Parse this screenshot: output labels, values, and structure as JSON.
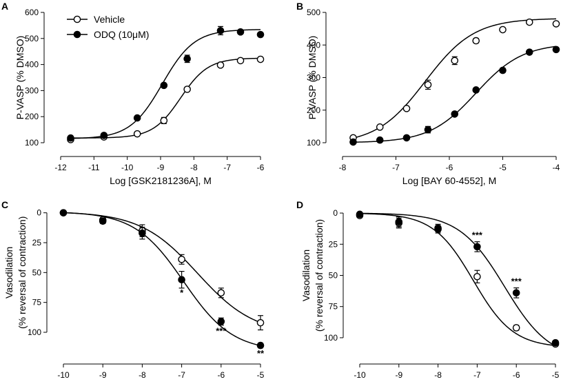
{
  "colors": {
    "ink": "#000000",
    "open_fill": "#ffffff",
    "filled": "#000000"
  },
  "legend": [
    {
      "label": "Vehicle",
      "marker": "open-circle"
    },
    {
      "label": "ODQ (10μM)",
      "marker": "filled-circle"
    }
  ],
  "chart_data": [
    {
      "type": "scatter",
      "panel": "A",
      "xlabel": "Log [GSK2181236A], M",
      "ylabel": "P-VASP (% DMSO)",
      "xlim": [
        -12,
        -6
      ],
      "ylim": [
        100,
        600
      ],
      "xticks": [
        -12,
        -11,
        -10,
        -9,
        -8,
        -7,
        -6
      ],
      "yticks": [
        100,
        200,
        300,
        400,
        500,
        600
      ],
      "inverted_y": false,
      "series": [
        {
          "name": "Vehicle",
          "marker": "open",
          "x": [
            -11.7,
            -10.7,
            -9.7,
            -8.9,
            -8.2,
            -7.2,
            -6.6,
            -6.0
          ],
          "y": [
            112,
            122,
            134,
            185,
            305,
            398,
            415,
            420
          ],
          "err": [
            6,
            5,
            6,
            12,
            8,
            8,
            6,
            5
          ],
          "fit": {
            "bottom": 118,
            "top": 425,
            "ec50": -8.4,
            "hill": 1.05
          }
        },
        {
          "name": "ODQ (10μM)",
          "marker": "filled",
          "x": [
            -11.7,
            -10.7,
            -9.7,
            -8.9,
            -8.2,
            -7.2,
            -6.6,
            -6.0
          ],
          "y": [
            118,
            128,
            195,
            320,
            422,
            530,
            525,
            515
          ],
          "err": [
            5,
            5,
            6,
            7,
            14,
            16,
            8,
            6
          ],
          "fit": {
            "bottom": 115,
            "top": 535,
            "ec50": -8.95,
            "hill": 0.9
          }
        }
      ],
      "annotations": []
    },
    {
      "type": "scatter",
      "panel": "B",
      "xlabel": "Log [BAY 60-4552], M",
      "ylabel": "P-VASP (% DMSO)",
      "xlim": [
        -8,
        -4
      ],
      "ylim": [
        100,
        500
      ],
      "xticks": [
        -8,
        -7,
        -6,
        -5,
        -4
      ],
      "yticks": [
        100,
        200,
        300,
        400,
        500
      ],
      "inverted_y": false,
      "series": [
        {
          "name": "Vehicle",
          "marker": "open",
          "x": [
            -7.8,
            -7.3,
            -6.8,
            -6.4,
            -5.9,
            -5.5,
            -5.0,
            -4.5,
            -4.0
          ],
          "y": [
            115,
            148,
            205,
            278,
            352,
            413,
            447,
            470,
            465
          ],
          "err": [
            5,
            5,
            6,
            14,
            12,
            7,
            6,
            5,
            5
          ],
          "fit": {
            "bottom": 95,
            "top": 482,
            "ec50": -6.45,
            "hill": 0.95
          }
        },
        {
          "name": "ODQ (10μM)",
          "marker": "filled",
          "x": [
            -7.8,
            -7.3,
            -6.8,
            -6.4,
            -5.9,
            -5.5,
            -5.0,
            -4.5,
            -4.0
          ],
          "y": [
            102,
            108,
            115,
            140,
            188,
            262,
            322,
            378,
            386
          ],
          "err": [
            4,
            4,
            4,
            10,
            5,
            6,
            7,
            5,
            5
          ],
          "fit": {
            "bottom": 100,
            "top": 405,
            "ec50": -5.5,
            "hill": 1.0
          }
        }
      ],
      "annotations": []
    },
    {
      "type": "scatter",
      "panel": "C",
      "xlabel": "Log [GSK2181236A], M",
      "ylabel": "Vasodilation",
      "ylabel2": "(% reversal of contraction)",
      "xlim": [
        -10,
        -5
      ],
      "ylim": [
        -5,
        115
      ],
      "xticks": [
        -10,
        -9,
        -8,
        -7,
        -6,
        -5
      ],
      "yticks": [
        0,
        25,
        50,
        75,
        100
      ],
      "inverted_y": true,
      "series": [
        {
          "name": "Vehicle",
          "marker": "open",
          "x": [
            -10,
            -9,
            -8,
            -7,
            -6,
            -5
          ],
          "y": [
            0,
            6,
            15,
            39,
            67,
            92
          ],
          "err": [
            1,
            2,
            5,
            4,
            4,
            6
          ],
          "fit": {
            "bottom": -1,
            "top": 102,
            "ec50": -6.6,
            "hill": 0.6
          }
        },
        {
          "name": "ODQ (10μM)",
          "marker": "filled",
          "x": [
            -10,
            -9,
            -8,
            -7,
            -6,
            -5
          ],
          "y": [
            0,
            7,
            17,
            56,
            91,
            111
          ],
          "err": [
            1,
            2,
            5,
            7,
            3,
            2
          ],
          "fit": {
            "bottom": -1,
            "top": 116,
            "ec50": -6.95,
            "hill": 0.7
          }
        }
      ],
      "annotations": [
        {
          "text": "*",
          "x": -7,
          "y": 67
        },
        {
          "text": "***",
          "x": -6,
          "y": 99
        },
        {
          "text": "**",
          "x": -5,
          "y": 118
        }
      ]
    },
    {
      "type": "scatter",
      "panel": "D",
      "xlabel": "Log [BAY 60-4552], M",
      "ylabel": "Vasodilation",
      "ylabel2": "(% reversal of contraction)",
      "xlim": [
        -10,
        -5
      ],
      "ylim": [
        -5,
        110
      ],
      "xticks": [
        -10,
        -9,
        -8,
        -7,
        -6,
        -5
      ],
      "yticks": [
        0,
        25,
        50,
        75,
        100
      ],
      "inverted_y": true,
      "series": [
        {
          "name": "Vehicle",
          "marker": "open",
          "x": [
            -10,
            -9,
            -8,
            -7,
            -6,
            -5
          ],
          "y": [
            2,
            8,
            12,
            51,
            92,
            105
          ],
          "err": [
            1,
            4,
            3,
            5,
            2,
            1
          ],
          "fit": {
            "bottom": 0,
            "top": 108,
            "ec50": -7.1,
            "hill": 0.85
          }
        },
        {
          "name": "ODQ (10μM)",
          "marker": "filled",
          "x": [
            -10,
            -9,
            -8,
            -7,
            -6,
            -5
          ],
          "y": [
            1,
            7,
            13,
            27,
            64,
            104
          ],
          "err": [
            1,
            4,
            3,
            4,
            4,
            1
          ],
          "fit": {
            "bottom": 0,
            "top": 118,
            "ec50": -6.3,
            "hill": 0.75
          }
        }
      ],
      "annotations": [
        {
          "text": "***",
          "x": -7,
          "y": 18
        },
        {
          "text": "***",
          "x": -6,
          "y": 55
        }
      ]
    }
  ]
}
